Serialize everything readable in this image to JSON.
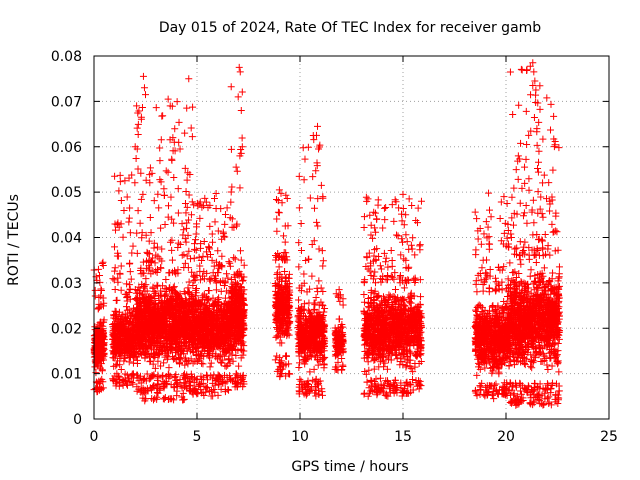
{
  "chart_data": {
    "type": "scatter",
    "title": "Day 015 of 2024, Rate Of TEC Index for receiver gamb",
    "xlabel": "GPS time / hours",
    "ylabel": "ROTI / TECUs",
    "xlim": [
      0,
      25
    ],
    "ylim": [
      0,
      0.08
    ],
    "grid": true,
    "marker": "plus",
    "color": "#ff0000",
    "x_ticks": [
      {
        "value": 0,
        "label": "0"
      },
      {
        "value": 5,
        "label": "5"
      },
      {
        "value": 10,
        "label": "10"
      },
      {
        "value": 15,
        "label": "15"
      },
      {
        "value": 20,
        "label": "20"
      },
      {
        "value": 25,
        "label": "25"
      }
    ],
    "y_ticks": [
      {
        "value": 0,
        "label": "0"
      },
      {
        "value": 0.01,
        "label": "0.01"
      },
      {
        "value": 0.02,
        "label": "0.02"
      },
      {
        "value": 0.03,
        "label": "0.03"
      },
      {
        "value": 0.04,
        "label": "0.04"
      },
      {
        "value": 0.05,
        "label": "0.05"
      },
      {
        "value": 0.06,
        "label": "0.06"
      },
      {
        "value": 0.07,
        "label": "0.07"
      },
      {
        "value": 0.08,
        "label": "0.08"
      }
    ],
    "series": [
      {
        "name": "ROTI",
        "segments": [
          {
            "x_range": [
              0.0,
              0.5
            ],
            "y_min": 0.006,
            "y_core": [
              0.009,
              0.024
            ],
            "y_max": 0.035,
            "count": 240
          },
          {
            "x_range": [
              0.9,
              2.0
            ],
            "y_min": 0.007,
            "y_core": [
              0.01,
              0.026
            ],
            "y_max": 0.054,
            "count": 460
          },
          {
            "x_range": [
              2.0,
              4.8
            ],
            "y_min": 0.004,
            "y_core": [
              0.01,
              0.032
            ],
            "y_max": 0.07,
            "count": 1500
          },
          {
            "x_range": [
              4.8,
              6.6
            ],
            "y_min": 0.005,
            "y_core": [
              0.01,
              0.03
            ],
            "y_max": 0.05,
            "count": 850
          },
          {
            "x_range": [
              6.6,
              7.3
            ],
            "y_min": 0.007,
            "y_core": [
              0.01,
              0.035
            ],
            "y_max": 0.077,
            "count": 420
          },
          {
            "x_range": [
              8.8,
              9.5
            ],
            "y_min": 0.009,
            "y_core": [
              0.014,
              0.035
            ],
            "y_max": 0.05,
            "count": 330
          },
          {
            "x_range": [
              9.9,
              11.2
            ],
            "y_min": 0.005,
            "y_core": [
              0.009,
              0.028
            ],
            "y_max": 0.064,
            "count": 560
          },
          {
            "x_range": [
              11.7,
              12.1
            ],
            "y_min": 0.01,
            "y_core": [
              0.012,
              0.022
            ],
            "y_max": 0.028,
            "count": 120
          },
          {
            "x_range": [
              13.1,
              15.9
            ],
            "y_min": 0.005,
            "y_core": [
              0.009,
              0.03
            ],
            "y_max": 0.049,
            "count": 1200
          },
          {
            "x_range": [
              18.5,
              20.2
            ],
            "y_min": 0.005,
            "y_core": [
              0.008,
              0.028
            ],
            "y_max": 0.05,
            "count": 800
          },
          {
            "x_range": [
              20.2,
              22.6
            ],
            "y_min": 0.003,
            "y_core": [
              0.008,
              0.036
            ],
            "y_max": 0.078,
            "count": 1250
          }
        ],
        "outliers": [
          {
            "x": 2.4,
            "y": 0.0755
          },
          {
            "x": 2.45,
            "y": 0.073
          },
          {
            "x": 2.5,
            "y": 0.0715
          },
          {
            "x": 2.3,
            "y": 0.0665
          },
          {
            "x": 3.6,
            "y": 0.0705
          },
          {
            "x": 3.7,
            "y": 0.069
          },
          {
            "x": 4.5,
            "y": 0.0685
          },
          {
            "x": 4.6,
            "y": 0.075
          },
          {
            "x": 4.4,
            "y": 0.063
          },
          {
            "x": 3.9,
            "y": 0.061
          },
          {
            "x": 2.0,
            "y": 0.06
          },
          {
            "x": 2.1,
            "y": 0.0595
          },
          {
            "x": 7.05,
            "y": 0.0775
          },
          {
            "x": 7.1,
            "y": 0.0765
          },
          {
            "x": 7.0,
            "y": 0.071
          },
          {
            "x": 7.15,
            "y": 0.068
          },
          {
            "x": 7.2,
            "y": 0.06
          },
          {
            "x": 6.9,
            "y": 0.0555
          },
          {
            "x": 10.85,
            "y": 0.0645
          },
          {
            "x": 10.9,
            "y": 0.0595
          },
          {
            "x": 10.8,
            "y": 0.0625
          },
          {
            "x": 21.3,
            "y": 0.0785
          },
          {
            "x": 21.35,
            "y": 0.0765
          },
          {
            "x": 21.4,
            "y": 0.0745
          },
          {
            "x": 21.3,
            "y": 0.0735
          },
          {
            "x": 21.45,
            "y": 0.0725
          },
          {
            "x": 21.5,
            "y": 0.064
          },
          {
            "x": 21.1,
            "y": 0.0625
          },
          {
            "x": 21.0,
            "y": 0.0605
          },
          {
            "x": 20.6,
            "y": 0.058
          },
          {
            "x": 20.9,
            "y": 0.0555
          },
          {
            "x": 21.6,
            "y": 0.059
          },
          {
            "x": 21.2,
            "y": 0.0033
          },
          {
            "x": 4.3,
            "y": 0.0042
          },
          {
            "x": 10.2,
            "y": 0.0055
          },
          {
            "x": 14.2,
            "y": 0.0055
          },
          {
            "x": 19.4,
            "y": 0.0045
          },
          {
            "x": 1.5,
            "y": 0.0525
          },
          {
            "x": 1.0,
            "y": 0.0535
          },
          {
            "x": 13.3,
            "y": 0.0485
          },
          {
            "x": 15.0,
            "y": 0.0495
          },
          {
            "x": 15.3,
            "y": 0.0485
          },
          {
            "x": 9.0,
            "y": 0.0505
          },
          {
            "x": 19.9,
            "y": 0.049
          },
          {
            "x": 11.9,
            "y": 0.0285
          }
        ]
      }
    ]
  }
}
